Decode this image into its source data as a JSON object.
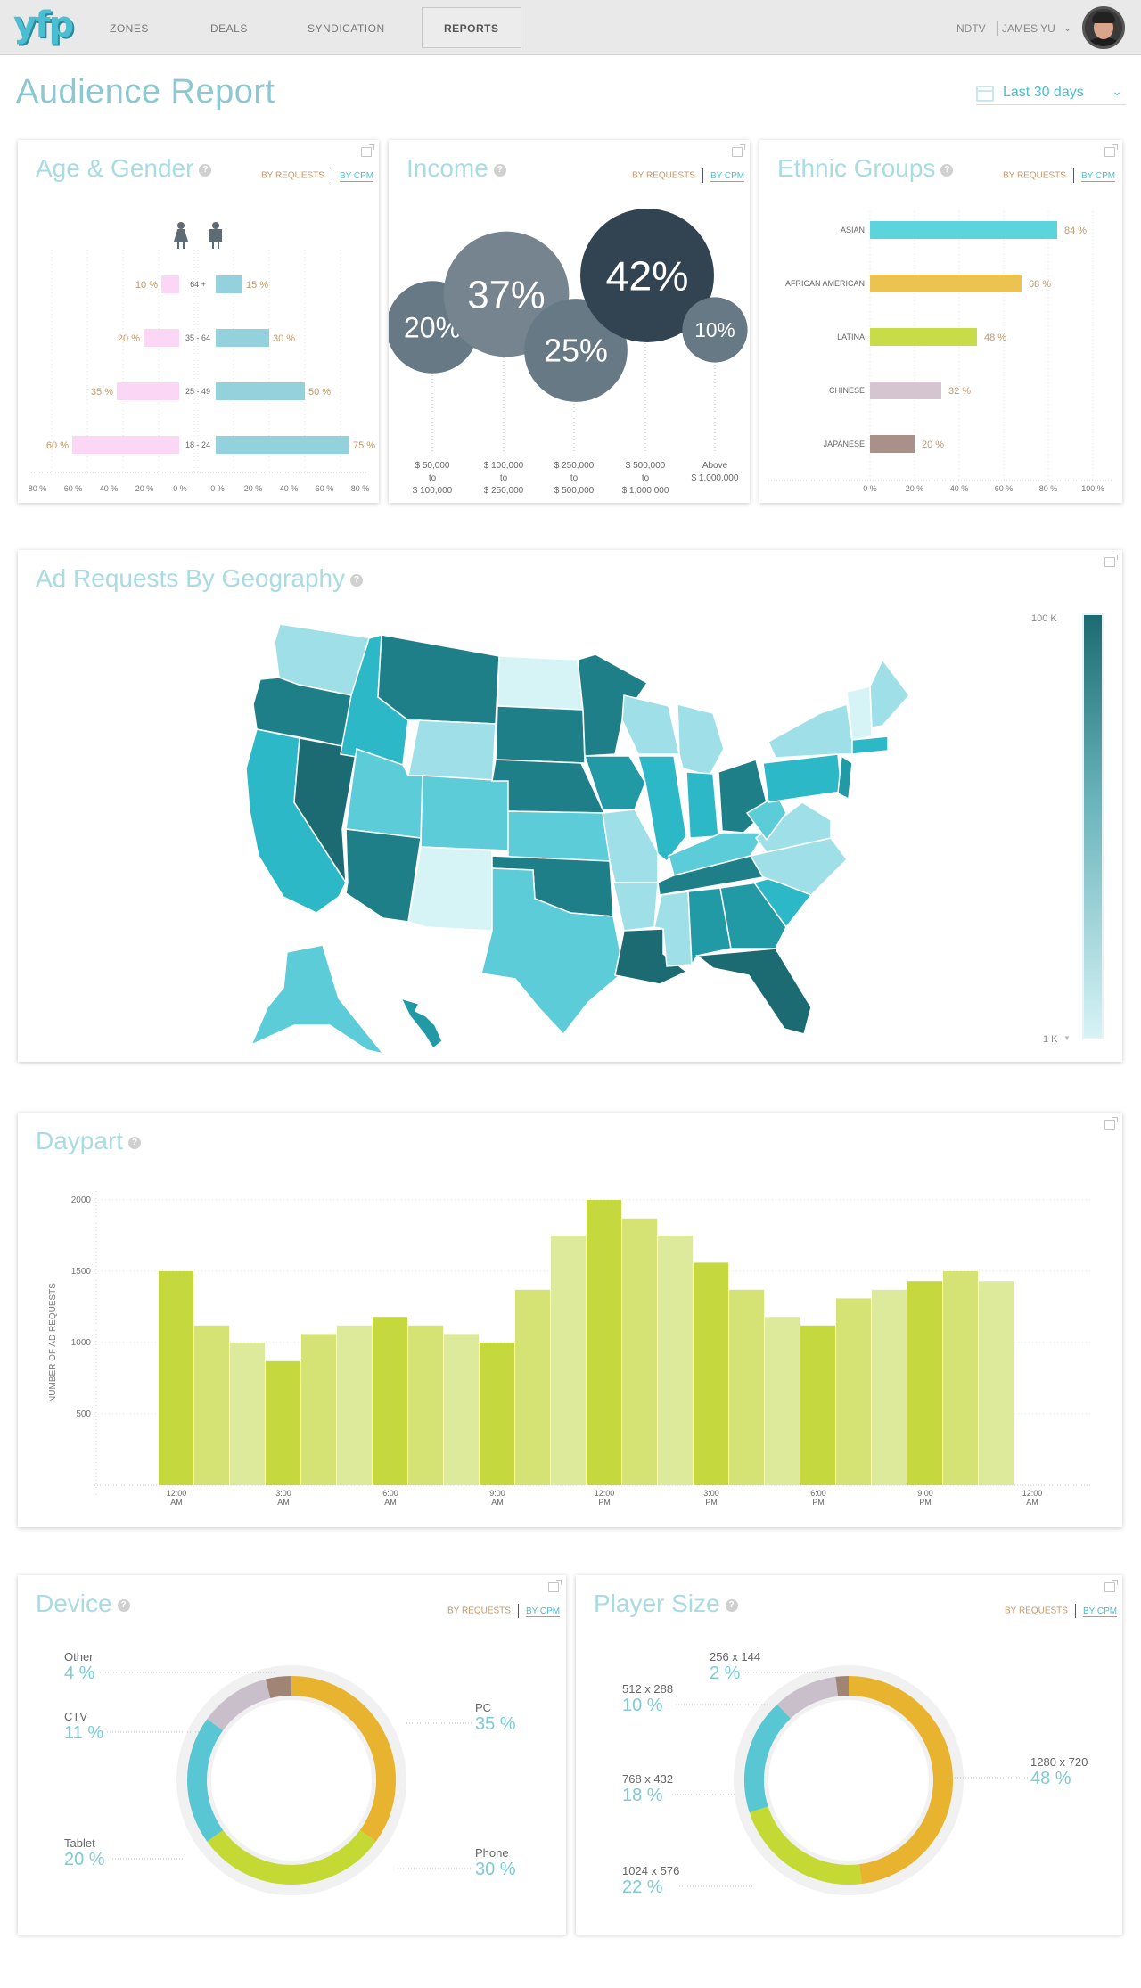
{
  "nav": {
    "logo": "yfp",
    "items": [
      {
        "label": "ZONES",
        "active": false
      },
      {
        "label": "DEALS",
        "active": false
      },
      {
        "label": "SYNDICATION",
        "active": false
      },
      {
        "label": "REPORTS",
        "active": true
      }
    ],
    "account": "NDTV",
    "user": "JAMES YU",
    "dropdown_icon": "chevron-down-icon"
  },
  "page": {
    "title": "Audience Report",
    "date_range": "Last 30 days"
  },
  "toggle": {
    "by_requests": "BY REQUESTS",
    "by_cpm": "BY CPM"
  },
  "age_gender": {
    "title": "Age & Gender",
    "icons": [
      "female-icon",
      "male-icon"
    ],
    "rows": [
      {
        "label": "64 +",
        "female": 10,
        "male": 15,
        "female_text": "10 %",
        "male_text": "15 %"
      },
      {
        "label": "35 - 64",
        "female": 20,
        "male": 30,
        "female_text": "20 %",
        "male_text": "30 %"
      },
      {
        "label": "25 - 49",
        "female": 35,
        "male": 50,
        "female_text": "35 %",
        "male_text": "50 %"
      },
      {
        "label": "18 - 24",
        "female": 60,
        "male": 75,
        "female_text": "60 %",
        "male_text": "75 %"
      }
    ],
    "left_ticks": [
      "80 %",
      "60 %",
      "40 %",
      "20 %",
      "0 %"
    ],
    "right_ticks": [
      "0 %",
      "20 %",
      "40 %",
      "60 %",
      "80 %"
    ],
    "colors": {
      "female": "#fcd7f5",
      "male": "#93d2dc"
    }
  },
  "income": {
    "title": "Income",
    "bubbles": [
      {
        "value": 20,
        "text": "20%"
      },
      {
        "value": 37,
        "text": "37%"
      },
      {
        "value": 25,
        "text": "25%"
      },
      {
        "value": 42,
        "text": "42%"
      },
      {
        "value": 10,
        "text": "10%"
      }
    ],
    "categories": [
      [
        "$ 50,000",
        "to",
        "$ 100,000"
      ],
      [
        "$ 100,000",
        "to",
        "$ 250,000"
      ],
      [
        "$ 250,000",
        "to",
        "$ 500,000"
      ],
      [
        "$ 500,000",
        "to",
        "$ 1,000,000"
      ],
      [
        "Above",
        "$ 1,000,000"
      ]
    ]
  },
  "ethnic": {
    "title": "Ethnic Groups",
    "rows": [
      {
        "label": "ASIAN",
        "value": 84,
        "text": "84 %",
        "color": "#5dd3dc"
      },
      {
        "label": "AFRICAN AMERICAN",
        "value": 68,
        "text": "68 %",
        "color": "#ecc350"
      },
      {
        "label": "LATINA",
        "value": 48,
        "text": "48 %",
        "color": "#c8dc48"
      },
      {
        "label": "CHINESE",
        "value": 32,
        "text": "32 %",
        "color": "#d4c5d0"
      },
      {
        "label": "JAPANESE",
        "value": 20,
        "text": "20 %",
        "color": "#a99189"
      }
    ],
    "ticks": [
      "0 %",
      "20 %",
      "40 %",
      "60 %",
      "80 %",
      "100 %"
    ]
  },
  "geography": {
    "title": "Ad Requests By Geography",
    "legend_max": "100 K",
    "legend_min": "1 K",
    "colors": {
      "high": "#1d6b72",
      "low": "#d6f3f6"
    }
  },
  "daypart": {
    "title": "Daypart",
    "ylabel": "NUMBER OF AD REQUESTS",
    "yticks": [
      "2000",
      "1500",
      "1000",
      "500"
    ],
    "xticks": [
      [
        "12:00",
        "AM"
      ],
      [
        "3:00",
        "AM"
      ],
      [
        "6:00",
        "AM"
      ],
      [
        "9:00",
        "AM"
      ],
      [
        "12:00",
        "PM"
      ],
      [
        "3:00",
        "PM"
      ],
      [
        "6:00",
        "PM"
      ],
      [
        "9:00",
        "PM"
      ],
      [
        "12:00",
        "AM"
      ]
    ]
  },
  "device": {
    "title": "Device",
    "segments": [
      {
        "label": "PC",
        "value": 35,
        "text": "35 %",
        "color": "#e8b42f"
      },
      {
        "label": "Phone",
        "value": 30,
        "text": "30 %",
        "color": "#c5d935"
      },
      {
        "label": "Tablet",
        "value": 20,
        "text": "20 %",
        "color": "#58c6d3"
      },
      {
        "label": "CTV",
        "value": 11,
        "text": "11 %",
        "color": "#c8bfca"
      },
      {
        "label": "Other",
        "value": 4,
        "text": "4 %",
        "color": "#a08474"
      }
    ]
  },
  "player_size": {
    "title": "Player Size",
    "segments": [
      {
        "label": "1280 x 720",
        "value": 48,
        "text": "48 %",
        "color": "#e8b42f"
      },
      {
        "label": "1024 x 576",
        "value": 22,
        "text": "22 %",
        "color": "#c5d935"
      },
      {
        "label": "768 x 432",
        "value": 18,
        "text": "18 %",
        "color": "#58c6d3"
      },
      {
        "label": "512 x 288",
        "value": 10,
        "text": "10 %",
        "color": "#c8bfca"
      },
      {
        "label": "256 x 144",
        "value": 2,
        "text": "2 %",
        "color": "#a08474"
      }
    ]
  },
  "chart_data": [
    {
      "type": "bar",
      "title": "Age & Gender",
      "categories": [
        "64 +",
        "35 - 64",
        "25 - 49",
        "18 - 24"
      ],
      "series": [
        {
          "values": [
            10,
            20,
            35,
            60
          ]
        },
        {
          "values": [
            15,
            30,
            50,
            75
          ]
        }
      ],
      "xlim": [
        0,
        80
      ]
    },
    {
      "type": "scatter",
      "title": "Income",
      "categories": [
        "$ 50,000 to $ 100,000",
        "$ 100,000 to $ 250,000",
        "$ 250,000 to $ 500,000",
        "$ 500,000 to $ 1,000,000",
        "Above $ 1,000,000"
      ],
      "values": [
        20,
        37,
        25,
        42,
        10
      ]
    },
    {
      "type": "bar",
      "title": "Ethnic Groups",
      "categories": [
        "ASIAN",
        "AFRICAN AMERICAN",
        "LATINA",
        "CHINESE",
        "JAPANESE"
      ],
      "values": [
        84,
        68,
        48,
        32,
        20
      ],
      "xlim": [
        0,
        100
      ]
    },
    {
      "type": "bar",
      "title": "Daypart",
      "ylabel": "NUMBER OF AD REQUESTS",
      "x": [
        0,
        1,
        2,
        3,
        4,
        5,
        6,
        7,
        8,
        9,
        10,
        11,
        12,
        13,
        14,
        15,
        16,
        17,
        18,
        19,
        20,
        21,
        22,
        23
      ],
      "values": [
        1500,
        1120,
        1000,
        870,
        1060,
        1120,
        1180,
        1120,
        1060,
        1000,
        1370,
        1750,
        2000,
        1870,
        1750,
        1560,
        1370,
        1180,
        1120,
        1310,
        1370,
        1430,
        1500,
        1430
      ],
      "ylim": [
        0,
        2000
      ]
    },
    {
      "type": "pie",
      "title": "Device",
      "categories": [
        "PC",
        "Phone",
        "Tablet",
        "CTV",
        "Other"
      ],
      "values": [
        35,
        30,
        20,
        11,
        4
      ]
    },
    {
      "type": "pie",
      "title": "Player Size",
      "categories": [
        "1280 x 720",
        "1024 x 576",
        "768 x 432",
        "512 x 288",
        "256 x 144"
      ],
      "values": [
        48,
        22,
        18,
        10,
        2
      ]
    }
  ]
}
